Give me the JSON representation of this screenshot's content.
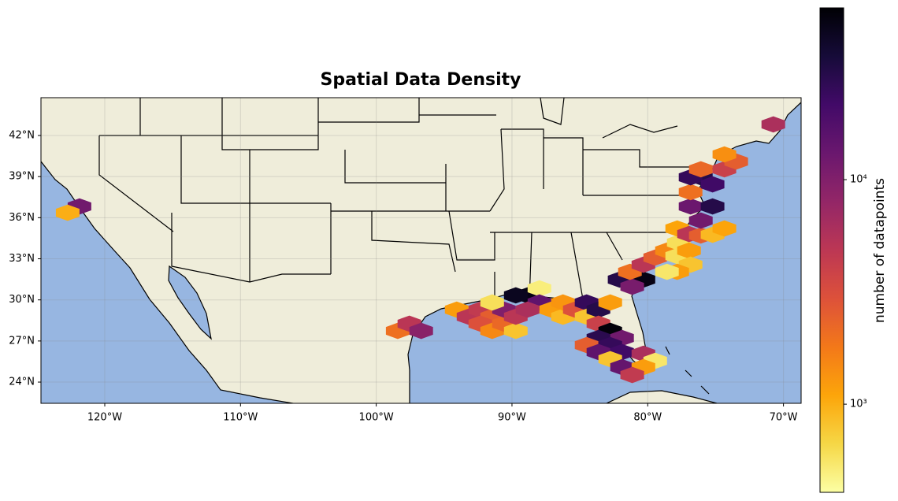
{
  "chart_data": {
    "type": "hexbin",
    "title": "Spatial Data Density",
    "xlim": [
      -124.7,
      -68.7
    ],
    "ylim": [
      22.45,
      44.76
    ],
    "xticks": [
      {
        "value": -120,
        "label": "120°W"
      },
      {
        "value": -110,
        "label": "110°W"
      },
      {
        "value": -100,
        "label": "100°W"
      },
      {
        "value": -90,
        "label": "90°W"
      },
      {
        "value": -80,
        "label": "80°W"
      },
      {
        "value": -70,
        "label": "70°W"
      }
    ],
    "yticks": [
      {
        "value": 24,
        "label": "24°N"
      },
      {
        "value": 27,
        "label": "27°N"
      },
      {
        "value": 30,
        "label": "30°N"
      },
      {
        "value": 33,
        "label": "33°N"
      },
      {
        "value": 36,
        "label": "36°N"
      },
      {
        "value": 39,
        "label": "39°N"
      },
      {
        "value": 42,
        "label": "42°N"
      }
    ],
    "grid": true,
    "x": [
      -121.86,
      -122.73,
      -98.42,
      -97.56,
      -96.69,
      -94.07,
      -93.2,
      -92.33,
      -91.46,
      -92.33,
      -91.46,
      -90.59,
      -89.72,
      -90.59,
      -89.72,
      -91.46,
      -88.85,
      -89.72,
      -87.98,
      -87.98,
      -88.85,
      -87.11,
      -86.24,
      -86.24,
      -85.37,
      -84.5,
      -84.5,
      -83.63,
      -82.76,
      -83.63,
      -82.76,
      -83.63,
      -81.89,
      -84.5,
      -82.76,
      -83.63,
      -81.89,
      -82.76,
      -80.32,
      -79.45,
      -81.89,
      -80.32,
      -81.14,
      -82.07,
      -80.32,
      -81.14,
      -81.31,
      -80.32,
      -79.45,
      -78.58,
      -77.83,
      -77.71,
      -76.96,
      -77.83,
      -76.96,
      -76.09,
      -75.22,
      -74.35,
      -76.09,
      -76.84,
      -77.83,
      -78.58,
      -76.84,
      -75.22,
      -76.84,
      -76.09,
      -76.84,
      -75.22,
      -76.09,
      -74.35,
      -73.48,
      -74.35,
      -70.75
    ],
    "y": [
      36.82,
      36.36,
      27.74,
      28.26,
      27.74,
      29.29,
      28.77,
      29.29,
      28.77,
      28.26,
      27.74,
      28.26,
      27.74,
      29.29,
      28.77,
      29.81,
      30.33,
      30.33,
      30.84,
      29.81,
      29.29,
      29.29,
      28.77,
      29.81,
      29.29,
      29.81,
      28.77,
      29.29,
      29.81,
      28.26,
      27.74,
      27.22,
      27.22,
      26.7,
      26.7,
      26.19,
      26.19,
      25.67,
      26.07,
      25.55,
      25.09,
      25.09,
      24.52,
      31.48,
      31.48,
      30.96,
      32.05,
      32.57,
      33.09,
      33.6,
      33.2,
      34.18,
      33.6,
      35.21,
      34.81,
      34.7,
      34.75,
      35.21,
      35.79,
      32.57,
      32.05,
      32.05,
      36.82,
      36.82,
      37.86,
      38.95,
      38.95,
      38.43,
      39.53,
      39.53,
      40.1,
      40.62,
      42.81
    ],
    "values": [
      12000,
      1000,
      2000,
      5000,
      9000,
      1200,
      5000,
      4500,
      2500,
      3000,
      1500,
      2200,
      800,
      10000,
      5000,
      600,
      50000,
      45000,
      500,
      15000,
      6000,
      1200,
      900,
      1300,
      3000,
      25000,
      800,
      30000,
      1200,
      4000,
      55000,
      28000,
      12000,
      2500,
      25000,
      15000,
      22000,
      800,
      6000,
      550,
      14000,
      1200,
      4500,
      30000,
      50000,
      11000,
      2000,
      5000,
      2500,
      1500,
      600,
      600,
      1200,
      1100,
      5000,
      2500,
      900,
      1100,
      12000,
      800,
      1200,
      550,
      13000,
      30000,
      2000,
      30000,
      25000,
      22000,
      2200,
      4000,
      2500,
      1400,
      6000
    ],
    "colorbar": {
      "label": "number of datapoints",
      "colormap": "inferno_r",
      "scale": "log",
      "clim": [
        405,
        58200
      ],
      "ticks": [
        {
          "value": 1000,
          "label": "10³"
        },
        {
          "value": 10000,
          "label": "10⁴"
        }
      ]
    }
  }
}
